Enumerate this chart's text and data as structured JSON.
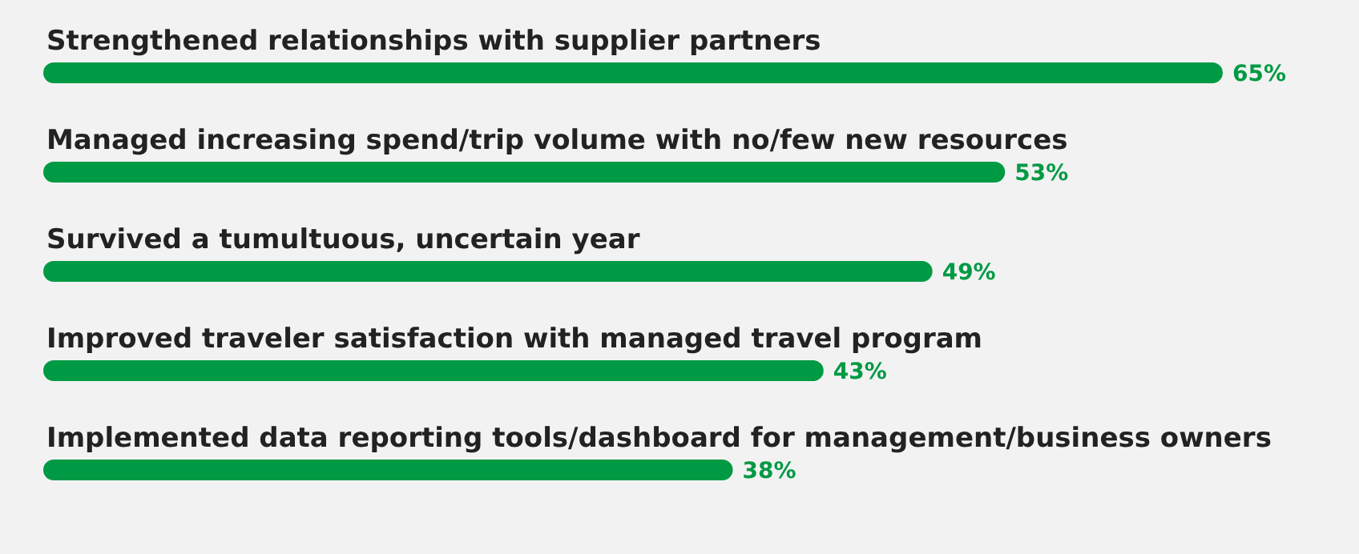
{
  "chart_data": {
    "type": "bar",
    "orientation": "horizontal",
    "categories": [
      "Strengthened relationships with supplier partners",
      "Managed increasing spend/trip volume with no/few new resources",
      "Survived a tumultuous, uncertain year",
      "Improved traveler satisfaction with managed travel program",
      "Implemented data reporting tools/dashboard for management/business owners"
    ],
    "values": [
      65,
      53,
      49,
      43,
      38
    ],
    "value_labels": [
      "65%",
      "53%",
      "49%",
      "43%",
      "38%"
    ],
    "color": "#009a44",
    "grid": false,
    "legend": false
  }
}
